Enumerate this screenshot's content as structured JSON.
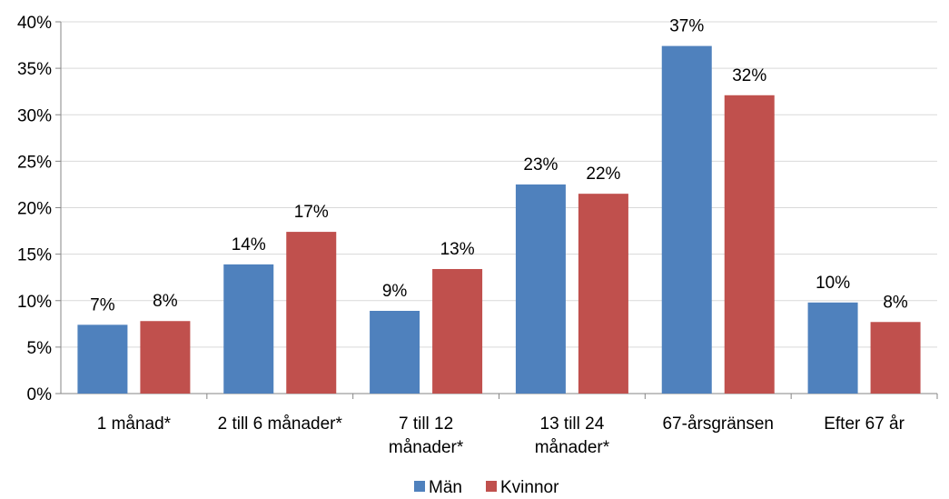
{
  "chart_data": {
    "type": "bar",
    "categories": [
      [
        "1 månad*"
      ],
      [
        "2 till 6 månader*"
      ],
      [
        "7 till 12",
        "månader*"
      ],
      [
        "13 till 24",
        "månader*"
      ],
      [
        "67-årsgränsen"
      ],
      [
        "Efter 67 år"
      ]
    ],
    "series": [
      {
        "name": "Män",
        "color": "#4F81BD",
        "values": [
          7.4,
          13.9,
          8.9,
          22.5,
          37.4,
          9.8
        ],
        "labels": [
          "7%",
          "14%",
          "9%",
          "23%",
          "37%",
          "10%"
        ]
      },
      {
        "name": "Kvinnor",
        "color": "#C0504D",
        "values": [
          7.8,
          17.4,
          13.4,
          21.5,
          32.1,
          7.7
        ],
        "labels": [
          "8%",
          "17%",
          "13%",
          "22%",
          "32%",
          "8%"
        ]
      }
    ],
    "y_ticks": [
      "0%",
      "5%",
      "10%",
      "15%",
      "20%",
      "25%",
      "30%",
      "35%",
      "40%"
    ],
    "ylim": [
      0,
      40
    ],
    "ytick_step": 5,
    "grid": true,
    "legend_position": "bottom"
  }
}
